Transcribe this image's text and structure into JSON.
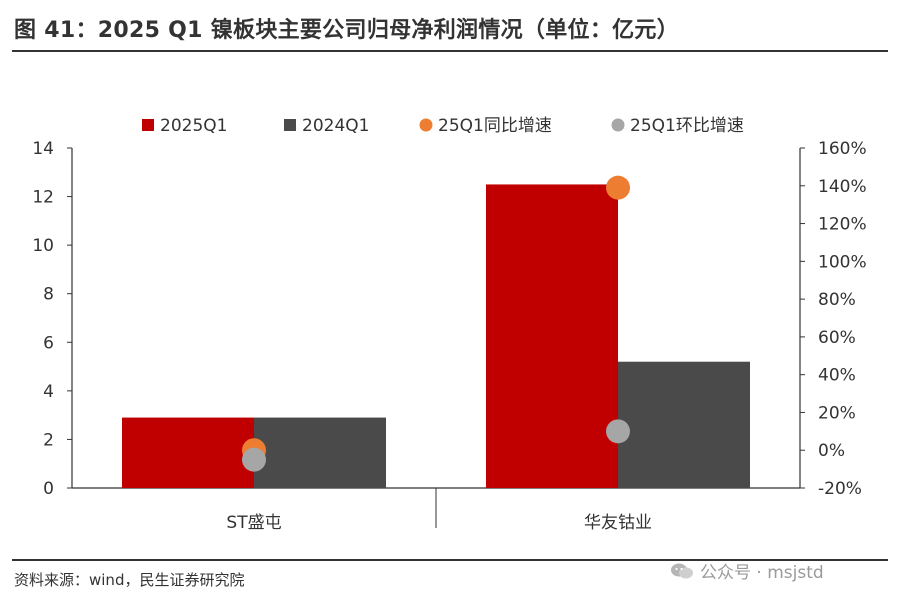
{
  "figure": {
    "title": "图 41：2025 Q1 镍板块主要公司归母净利润情况（单位：亿元）",
    "source": "资料来源：wind，民生证券研究院",
    "watermark": "公众号 · msjstd",
    "watermark_icon": "wechat-icon"
  },
  "chart_data": {
    "type": "bar",
    "title": "",
    "xlabel": "",
    "ylabel": "",
    "categories": [
      "ST盛屯",
      "华友钴业"
    ],
    "series": [
      {
        "name": "2025Q1",
        "kind": "bar",
        "axis": "left",
        "color": "#C00000",
        "values": [
          2.9,
          12.5
        ]
      },
      {
        "name": "2024Q1",
        "kind": "bar",
        "axis": "left",
        "color": "#4A4A4A",
        "values": [
          2.9,
          5.2
        ]
      },
      {
        "name": "25Q1同比增速",
        "kind": "scatter",
        "axis": "right",
        "color": "#ED7D31",
        "values": [
          0.0,
          1.39
        ]
      },
      {
        "name": "25Q1环比增速",
        "kind": "scatter",
        "axis": "right",
        "color": "#A6A6A6",
        "values": [
          -0.05,
          0.1
        ]
      }
    ],
    "ylim": [
      0,
      14
    ],
    "yticks": [
      "0",
      "2",
      "4",
      "6",
      "8",
      "10",
      "12",
      "14"
    ],
    "y2lim": [
      -0.2,
      1.6
    ],
    "y2ticks": [
      "-20%",
      "0%",
      "20%",
      "40%",
      "60%",
      "80%",
      "100%",
      "120%",
      "140%",
      "160%"
    ],
    "legend_position": "top-center",
    "grid": false
  }
}
